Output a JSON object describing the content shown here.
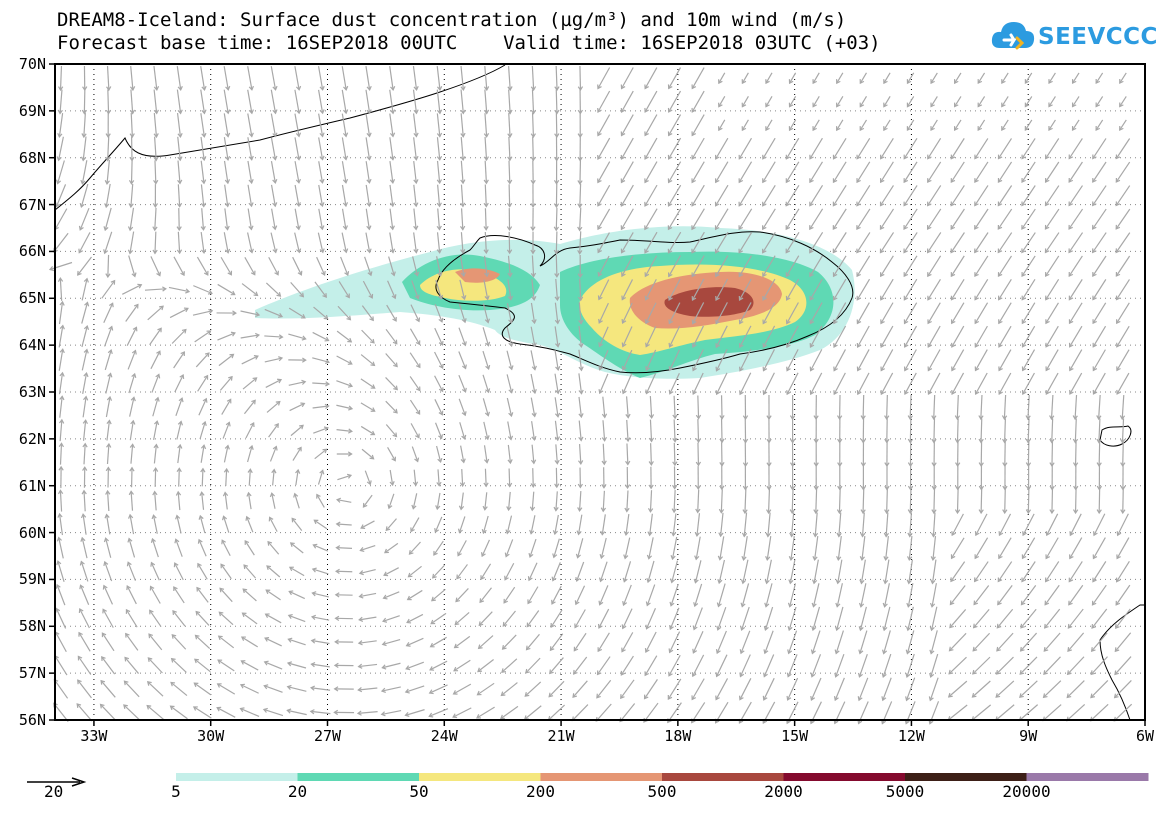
{
  "header": {
    "title_line1": "DREAM8-Iceland: Surface dust concentration (µg/m³) and 10m wind (m/s)",
    "title_line2": "Forecast base time: 16SEP2018 00UTC    Valid time: 16SEP2018 03UTC (+03)"
  },
  "logo": {
    "text": "SEEVCCC",
    "icon": "cloud-icon",
    "color": "#2c9be0"
  },
  "map": {
    "lon_range": [
      -34,
      -6
    ],
    "lat_range": [
      56,
      70
    ],
    "lat_labels": [
      "70N",
      "69N",
      "68N",
      "67N",
      "66N",
      "65N",
      "64N",
      "63N",
      "62N",
      "61N",
      "60N",
      "59N",
      "58N",
      "57N",
      "56N"
    ],
    "lon_labels": [
      "33W",
      "30W",
      "27W",
      "24W",
      "21W",
      "18W",
      "15W",
      "12W",
      "9W",
      "6W"
    ],
    "gridlines": true,
    "wind_arrow_color": "#a8a8a8",
    "coastline_color": "#000000"
  },
  "colorbar": {
    "levels": [
      "5",
      "20",
      "50",
      "200",
      "500",
      "2000",
      "5000",
      "20000"
    ],
    "colors": [
      "#c4efe9",
      "#5fd9b4",
      "#f5e77e",
      "#e59674",
      "#a8483e",
      "#840a2e",
      "#3d1f17",
      "#9a79a9"
    ]
  },
  "wind_reference": {
    "label": "20"
  }
}
